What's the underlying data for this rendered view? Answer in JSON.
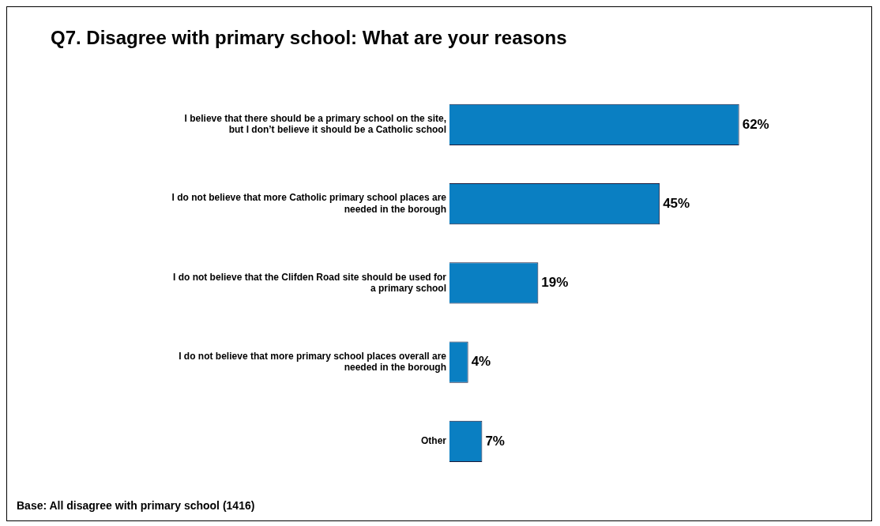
{
  "chart_data": {
    "type": "bar",
    "orientation": "horizontal",
    "title": "Q7. Disagree with primary school: What are your reasons",
    "categories": [
      "I believe that there should be a primary school on the site, but I don’t believe it should be a Catholic school",
      "I do not believe that more Catholic primary school places are needed in the borough",
      "I do not believe that the Clifden Road site should be used for a primary school",
      "I do not believe that more primary school places overall are needed in the borough",
      "Other"
    ],
    "values": [
      62,
      45,
      19,
      4,
      7
    ],
    "value_labels": [
      "62%",
      "45%",
      "19%",
      "4%",
      "7%"
    ],
    "color": "#0a7fc2",
    "legend": false,
    "annotations": [
      "Base: All disagree with primary school (1416)"
    ]
  }
}
